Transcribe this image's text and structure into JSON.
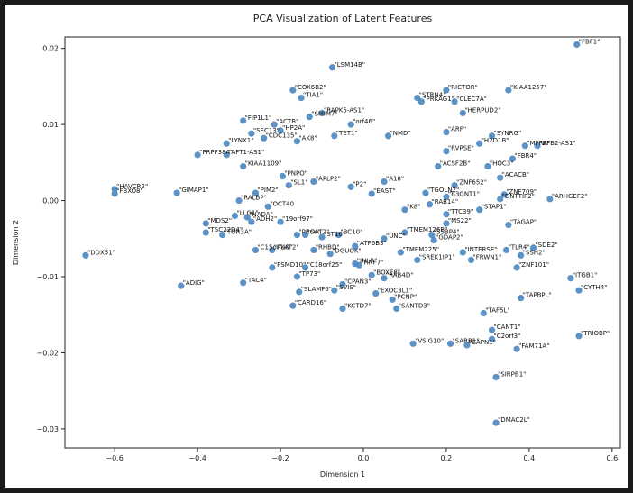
{
  "chart_data": {
    "type": "scatter",
    "title": "PCA Visualization of Latent Features",
    "xlabel": "Dimension 1",
    "ylabel": "Dimension 2",
    "xlim": [
      -0.72,
      0.62
    ],
    "ylim": [
      -0.0325,
      0.0215
    ],
    "xticks": [
      -0.6,
      -0.4,
      -0.2,
      0.0,
      0.2,
      0.4,
      0.6
    ],
    "xtick_labels": [
      "−0.6",
      "−0.4",
      "−0.2",
      "0.0",
      "0.2",
      "0.4",
      "0.6"
    ],
    "yticks": [
      -0.03,
      -0.02,
      -0.01,
      0.0,
      0.01,
      0.02
    ],
    "ytick_labels": [
      "−0.03",
      "−0.02",
      "−0.01",
      "0.00",
      "0.01",
      "0.02"
    ],
    "grid": false,
    "marker_color": "#4a86c0",
    "points": [
      {
        "x": 0.515,
        "y": 0.0205,
        "label": "\"FBF1\""
      },
      {
        "x": 0.35,
        "y": 0.0145,
        "label": "\"KIAA1257\""
      },
      {
        "x": 0.2,
        "y": 0.0145,
        "label": "\"RICTOR\""
      },
      {
        "x": 0.13,
        "y": 0.0135,
        "label": "\"STRN4\""
      },
      {
        "x": 0.14,
        "y": 0.013,
        "label": "\"PRKAG1\""
      },
      {
        "x": 0.22,
        "y": 0.013,
        "label": "\"CLEC7A\""
      },
      {
        "x": 0.24,
        "y": 0.0115,
        "label": "\"HERPUD2\""
      },
      {
        "x": -0.075,
        "y": 0.0175,
        "label": "\"LSM14B\""
      },
      {
        "x": -0.17,
        "y": 0.0145,
        "label": "\"COX6B2\""
      },
      {
        "x": -0.15,
        "y": 0.0135,
        "label": "\"TIA1\""
      },
      {
        "x": -0.13,
        "y": 0.011,
        "label": "\"SMIM7\""
      },
      {
        "x": -0.1,
        "y": 0.0115,
        "label": "\"RAPK5-AS1\""
      },
      {
        "x": -0.03,
        "y": 0.01,
        "label": "\"orf46\""
      },
      {
        "x": -0.29,
        "y": 0.0105,
        "label": "\"FIP1L1\""
      },
      {
        "x": -0.215,
        "y": 0.01,
        "label": "\"ACTB\""
      },
      {
        "x": -0.2,
        "y": 0.0092,
        "label": "\"HP2A\""
      },
      {
        "x": -0.27,
        "y": 0.0088,
        "label": "\"SEC13\""
      },
      {
        "x": -0.24,
        "y": 0.0082,
        "label": "\"CDC135\""
      },
      {
        "x": -0.33,
        "y": 0.0075,
        "label": "\"LYNX1\""
      },
      {
        "x": -0.4,
        "y": 0.006,
        "label": "\"PRPF38A\""
      },
      {
        "x": -0.33,
        "y": 0.006,
        "label": "\"AFT1-AS1\""
      },
      {
        "x": -0.29,
        "y": 0.0045,
        "label": "\"KIAA1109\""
      },
      {
        "x": -0.195,
        "y": 0.0032,
        "label": "\"PNPO\""
      },
      {
        "x": -0.16,
        "y": 0.0078,
        "label": "\"AK8\""
      },
      {
        "x": -0.07,
        "y": 0.0085,
        "label": "\"TET1\""
      },
      {
        "x": 0.06,
        "y": 0.0085,
        "label": "\"NMD\""
      },
      {
        "x": 0.2,
        "y": 0.009,
        "label": "\"ARF\""
      },
      {
        "x": 0.31,
        "y": 0.0085,
        "label": "\"SYNRG\""
      },
      {
        "x": 0.39,
        "y": 0.0072,
        "label": "\"MFRA\""
      },
      {
        "x": 0.42,
        "y": 0.0072,
        "label": "\"BFB2-AS1\""
      },
      {
        "x": 0.28,
        "y": 0.0075,
        "label": "\"H2D1B\""
      },
      {
        "x": 0.36,
        "y": 0.0055,
        "label": "\"FBR4\""
      },
      {
        "x": 0.3,
        "y": 0.0045,
        "label": "\"HOC3\""
      },
      {
        "x": 0.33,
        "y": 0.003,
        "label": "\"ACACB\""
      },
      {
        "x": 0.2,
        "y": 0.0065,
        "label": "\"RVPSE\""
      },
      {
        "x": 0.18,
        "y": 0.0045,
        "label": "\"ACSF2B\""
      },
      {
        "x": 0.22,
        "y": 0.002,
        "label": "\"ZNF652\""
      },
      {
        "x": 0.15,
        "y": 0.001,
        "label": "\"TGOLN2\""
      },
      {
        "x": 0.2,
        "y": 0.0005,
        "label": "\"B3GNT1\""
      },
      {
        "x": 0.34,
        "y": 0.0008,
        "label": "\"ZNF709\""
      },
      {
        "x": 0.33,
        "y": 0.0002,
        "label": "\"DNTTIP2\""
      },
      {
        "x": 0.45,
        "y": 0.0002,
        "label": "\"ARHGEF2\""
      },
      {
        "x": 0.28,
        "y": -0.0012,
        "label": "\"STAP1\""
      },
      {
        "x": 0.2,
        "y": -0.0018,
        "label": "\"TTC39\""
      },
      {
        "x": 0.16,
        "y": -0.0005,
        "label": "\"RAB14\""
      },
      {
        "x": 0.2,
        "y": -0.003,
        "label": "\"MS22\""
      },
      {
        "x": 0.35,
        "y": -0.0032,
        "label": "\"TAGAP\""
      },
      {
        "x": 0.165,
        "y": -0.0045,
        "label": "\"SSBP4\""
      },
      {
        "x": 0.17,
        "y": -0.0052,
        "label": "\"GDAP2\""
      },
      {
        "x": 0.1,
        "y": -0.0042,
        "label": "\"TMEM126B\""
      },
      {
        "x": 0.05,
        "y": -0.005,
        "label": "\"UNC\""
      },
      {
        "x": 0.09,
        "y": -0.0068,
        "label": "\"TMEM225\""
      },
      {
        "x": 0.13,
        "y": -0.0078,
        "label": "\"SREK1IP1\""
      },
      {
        "x": 0.24,
        "y": -0.0068,
        "label": "\"INTERSE\""
      },
      {
        "x": 0.26,
        "y": -0.0078,
        "label": "\"FRWN1\""
      },
      {
        "x": 0.345,
        "y": -0.0065,
        "label": "\"TLR4\""
      },
      {
        "x": 0.41,
        "y": -0.0062,
        "label": "\"SDE2\""
      },
      {
        "x": 0.38,
        "y": -0.0072,
        "label": "\"SSH2\""
      },
      {
        "x": 0.37,
        "y": -0.0088,
        "label": "\"ZNF101\""
      },
      {
        "x": 0.5,
        "y": -0.0102,
        "label": "\"ITGB1\""
      },
      {
        "x": 0.52,
        "y": -0.0118,
        "label": "\"CYTH4\""
      },
      {
        "x": 0.38,
        "y": -0.0128,
        "label": "\"TAPBPL\""
      },
      {
        "x": 0.29,
        "y": -0.0148,
        "label": "\"TAF5L\""
      },
      {
        "x": 0.31,
        "y": -0.017,
        "label": "\"CANT1\""
      },
      {
        "x": 0.31,
        "y": -0.0182,
        "label": "\"C2orf3\""
      },
      {
        "x": 0.52,
        "y": -0.0178,
        "label": "\"TRIOBP\""
      },
      {
        "x": 0.37,
        "y": -0.0195,
        "label": "\"FAM71A\""
      },
      {
        "x": 0.25,
        "y": -0.019,
        "label": "\"CAPN1\""
      },
      {
        "x": 0.21,
        "y": -0.0188,
        "label": "\"SARB1\""
      },
      {
        "x": 0.12,
        "y": -0.0188,
        "label": "\"VSIG10\""
      },
      {
        "x": 0.32,
        "y": -0.0232,
        "label": "\"SIRPB1\""
      },
      {
        "x": 0.32,
        "y": -0.0292,
        "label": "\"DMAC2L\""
      },
      {
        "x": 0.08,
        "y": -0.0142,
        "label": "\"SANTD3\""
      },
      {
        "x": 0.07,
        "y": -0.013,
        "label": "\"PCNP\""
      },
      {
        "x": 0.03,
        "y": -0.0122,
        "label": "\"EXOC3L1\""
      },
      {
        "x": 0.05,
        "y": -0.0102,
        "label": "\"RAB4D\""
      },
      {
        "x": 0.02,
        "y": -0.0098,
        "label": "\"BOXE8\""
      },
      {
        "x": -0.05,
        "y": -0.0142,
        "label": "\"KCTD7\""
      },
      {
        "x": -0.17,
        "y": -0.0138,
        "label": "\"CARD16\""
      },
      {
        "x": -0.155,
        "y": -0.012,
        "label": "\"SLAMF6\""
      },
      {
        "x": -0.07,
        "y": -0.0118,
        "label": "\"SVIS\""
      },
      {
        "x": -0.05,
        "y": -0.011,
        "label": "\"CPAN3\""
      },
      {
        "x": -0.16,
        "y": -0.01,
        "label": "\"TP73\""
      },
      {
        "x": -0.22,
        "y": -0.0088,
        "label": "\"PSMD10\""
      },
      {
        "x": -0.14,
        "y": -0.0088,
        "label": "\"C18orf25\""
      },
      {
        "x": -0.29,
        "y": -0.0108,
        "label": "\"TAC4\""
      },
      {
        "x": -0.44,
        "y": -0.0112,
        "label": "\"ADIG\""
      },
      {
        "x": -0.16,
        "y": -0.0045,
        "label": "\"PROAT2\""
      },
      {
        "x": -0.26,
        "y": -0.0065,
        "label": "\"C15orf40\""
      },
      {
        "x": -0.22,
        "y": -0.0065,
        "label": "\"PLAT2\""
      },
      {
        "x": -0.12,
        "y": -0.0065,
        "label": "\"RHBD\""
      },
      {
        "x": -0.08,
        "y": -0.007,
        "label": "\"DGUOK\""
      },
      {
        "x": -0.02,
        "y": -0.006,
        "label": "\"ATP6B3\""
      },
      {
        "x": -0.01,
        "y": -0.0085,
        "label": "\"RNF7\""
      },
      {
        "x": -0.02,
        "y": -0.0083,
        "label": "\"INLR\""
      },
      {
        "x": -0.67,
        "y": -0.0072,
        "label": "\"DDX51\""
      },
      {
        "x": -0.6,
        "y": 0.0015,
        "label": "\"HAVCR2\""
      },
      {
        "x": -0.6,
        "y": 0.0009,
        "label": "\"FBXO8\""
      },
      {
        "x": -0.45,
        "y": 0.001,
        "label": "\"GIMAP1\""
      },
      {
        "x": -0.38,
        "y": -0.0042,
        "label": "\"TSC22D4\""
      },
      {
        "x": -0.34,
        "y": -0.0045,
        "label": "\"TOR3A\""
      },
      {
        "x": -0.38,
        "y": -0.003,
        "label": "\"MDS2\""
      },
      {
        "x": -0.31,
        "y": -0.002,
        "label": "\"LLG1\""
      },
      {
        "x": -0.27,
        "y": -0.0028,
        "label": "\"ADH2\""
      },
      {
        "x": -0.3,
        "y": 0.0,
        "label": "\"RALBP\""
      },
      {
        "x": -0.28,
        "y": -0.0022,
        "label": "\"NADA\""
      },
      {
        "x": -0.26,
        "y": 0.001,
        "label": "\"PIM2\""
      },
      {
        "x": -0.23,
        "y": -0.0008,
        "label": "\"OCT40"
      },
      {
        "x": -0.2,
        "y": -0.0028,
        "label": "\"19orf97\""
      },
      {
        "x": -0.14,
        "y": -0.0045,
        "label": "\"S4\""
      },
      {
        "x": -0.1,
        "y": -0.0048,
        "label": "\"ST16\""
      },
      {
        "x": -0.06,
        "y": -0.0045,
        "label": "\"BC10\""
      },
      {
        "x": -0.18,
        "y": 0.002,
        "label": "\"SL1\""
      },
      {
        "x": -0.12,
        "y": 0.0025,
        "label": "\"APLP2\""
      },
      {
        "x": -0.03,
        "y": 0.0018,
        "label": "\"P2\""
      },
      {
        "x": 0.02,
        "y": 0.0009,
        "label": "\"EAST\""
      },
      {
        "x": 0.1,
        "y": -0.0012,
        "label": "\"K8\""
      },
      {
        "x": 0.05,
        "y": 0.0025,
        "label": "\"A18\""
      }
    ]
  }
}
